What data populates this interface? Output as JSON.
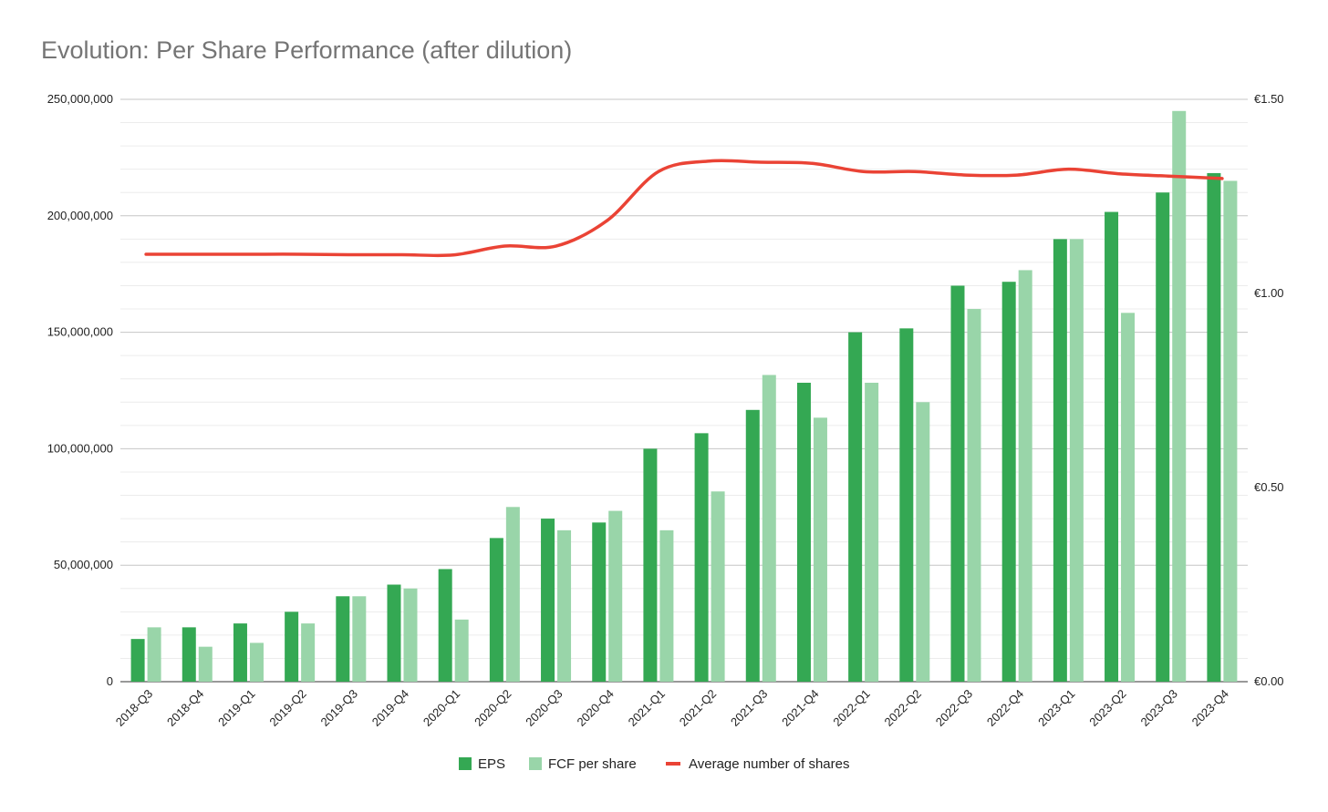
{
  "chart_data": {
    "type": "bar",
    "title": "Evolution: Per Share Performance (after dilution)",
    "categories": [
      "2018-Q3",
      "2018-Q4",
      "2019-Q1",
      "2019-Q2",
      "2019-Q3",
      "2019-Q4",
      "2020-Q1",
      "2020-Q2",
      "2020-Q3",
      "2020-Q4",
      "2021-Q1",
      "2021-Q2",
      "2021-Q3",
      "2021-Q4",
      "2022-Q1",
      "2022-Q2",
      "2022-Q3",
      "2022-Q4",
      "2023-Q1",
      "2023-Q2",
      "2023-Q3",
      "2023-Q4"
    ],
    "series": [
      {
        "name": "EPS",
        "type": "bar",
        "axis": "right",
        "color": "#34a853",
        "values": [
          0.11,
          0.14,
          0.15,
          0.18,
          0.22,
          0.25,
          0.29,
          0.37,
          0.42,
          0.41,
          0.6,
          0.64,
          0.7,
          0.77,
          0.9,
          0.91,
          1.02,
          1.03,
          1.14,
          1.21,
          1.26,
          1.31
        ]
      },
      {
        "name": "FCF per share",
        "type": "bar",
        "axis": "right",
        "color": "#99d5a9",
        "values": [
          0.14,
          0.09,
          0.1,
          0.15,
          0.22,
          0.24,
          0.16,
          0.45,
          0.39,
          0.44,
          0.39,
          0.49,
          0.79,
          0.68,
          0.77,
          0.72,
          0.96,
          1.06,
          1.14,
          0.95,
          1.47,
          1.29
        ]
      },
      {
        "name": "Average number of shares",
        "type": "line",
        "axis": "left",
        "color": "#ea4335",
        "values": [
          183500000,
          183500000,
          183500000,
          183500000,
          183300000,
          183300000,
          183200000,
          187000000,
          187000000,
          198000000,
          219000000,
          223500000,
          223000000,
          222500000,
          219000000,
          219000000,
          217500000,
          217500000,
          220000000,
          218000000,
          217000000,
          216000000
        ]
      }
    ],
    "y_left": {
      "min": 0,
      "max": 250000000,
      "ticks": [
        0,
        50000000,
        100000000,
        150000000,
        200000000,
        250000000
      ],
      "tick_labels": [
        "0",
        "50,000,000",
        "100,000,000",
        "150,000,000",
        "200,000,000",
        "250,000,000"
      ]
    },
    "y_right": {
      "min": 0,
      "max": 1.5,
      "ticks": [
        0,
        0.5,
        1.0,
        1.5
      ],
      "tick_labels": [
        "€0.00",
        "€0.50",
        "€1.00",
        "€1.50"
      ]
    },
    "grid": true,
    "legend_position": "bottom"
  }
}
